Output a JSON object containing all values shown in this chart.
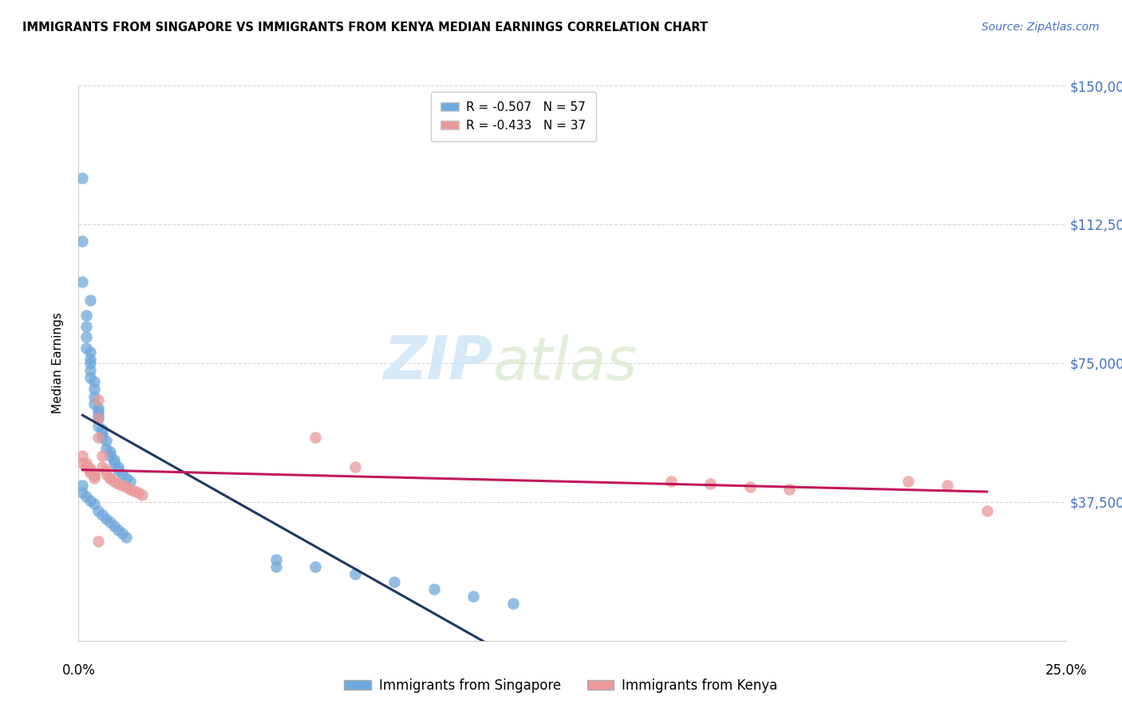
{
  "title": "IMMIGRANTS FROM SINGAPORE VS IMMIGRANTS FROM KENYA MEDIAN EARNINGS CORRELATION CHART",
  "source": "Source: ZipAtlas.com",
  "ylabel": "Median Earnings",
  "xlim": [
    0,
    0.25
  ],
  "ylim": [
    0,
    150000
  ],
  "yticks": [
    0,
    37500,
    75000,
    112500,
    150000
  ],
  "ytick_labels": [
    "",
    "$37,500",
    "$75,000",
    "$112,500",
    "$150,000"
  ],
  "xticks": [
    0.0,
    0.05,
    0.1,
    0.15,
    0.2,
    0.25
  ],
  "watermark_text": "ZIP",
  "watermark_text2": "atlas",
  "singapore_color": "#6fa8dc",
  "kenya_color": "#ea9999",
  "singapore_line_color": "#1f3864",
  "kenya_line_color": "#c2185b",
  "R_singapore": -0.507,
  "N_singapore": 57,
  "R_kenya": -0.433,
  "N_kenya": 37,
  "singapore_x": [
    0.001,
    0.001,
    0.001,
    0.002,
    0.002,
    0.002,
    0.002,
    0.003,
    0.003,
    0.003,
    0.003,
    0.003,
    0.004,
    0.004,
    0.004,
    0.004,
    0.005,
    0.005,
    0.005,
    0.005,
    0.005,
    0.006,
    0.006,
    0.006,
    0.007,
    0.007,
    0.008,
    0.008,
    0.009,
    0.009,
    0.01,
    0.01,
    0.011,
    0.012,
    0.013,
    0.001,
    0.001,
    0.002,
    0.003,
    0.004,
    0.005,
    0.006,
    0.007,
    0.008,
    0.009,
    0.01,
    0.011,
    0.012,
    0.003,
    0.05,
    0.06,
    0.07,
    0.08,
    0.09,
    0.1,
    0.11,
    0.05
  ],
  "singapore_y": [
    125000,
    108000,
    97000,
    88000,
    85000,
    82000,
    79000,
    78000,
    76000,
    75000,
    73000,
    71000,
    70000,
    68000,
    66000,
    64000,
    63000,
    62000,
    61000,
    60000,
    58000,
    57000,
    56000,
    55000,
    54000,
    52000,
    51000,
    50000,
    49000,
    48000,
    47000,
    46000,
    45000,
    44000,
    43000,
    42000,
    40000,
    39000,
    38000,
    37000,
    35000,
    34000,
    33000,
    32000,
    31000,
    30000,
    29000,
    28000,
    92000,
    22000,
    20000,
    18000,
    16000,
    14000,
    12000,
    10000,
    20000
  ],
  "kenya_x": [
    0.001,
    0.001,
    0.002,
    0.002,
    0.003,
    0.003,
    0.003,
    0.004,
    0.004,
    0.004,
    0.005,
    0.005,
    0.005,
    0.006,
    0.006,
    0.007,
    0.007,
    0.008,
    0.009,
    0.01,
    0.011,
    0.012,
    0.013,
    0.014,
    0.015,
    0.016,
    0.06,
    0.07,
    0.15,
    0.16,
    0.17,
    0.18,
    0.21,
    0.22,
    0.23,
    0.005,
    0.008
  ],
  "kenya_y": [
    50000,
    48000,
    48000,
    47000,
    46500,
    46000,
    45500,
    45000,
    44500,
    44000,
    65000,
    60000,
    55000,
    50000,
    47000,
    46000,
    45000,
    44000,
    43000,
    42500,
    42000,
    41500,
    41000,
    40500,
    40000,
    39500,
    55000,
    47000,
    43000,
    42500,
    41500,
    41000,
    43000,
    42000,
    35000,
    27000,
    44000
  ]
}
